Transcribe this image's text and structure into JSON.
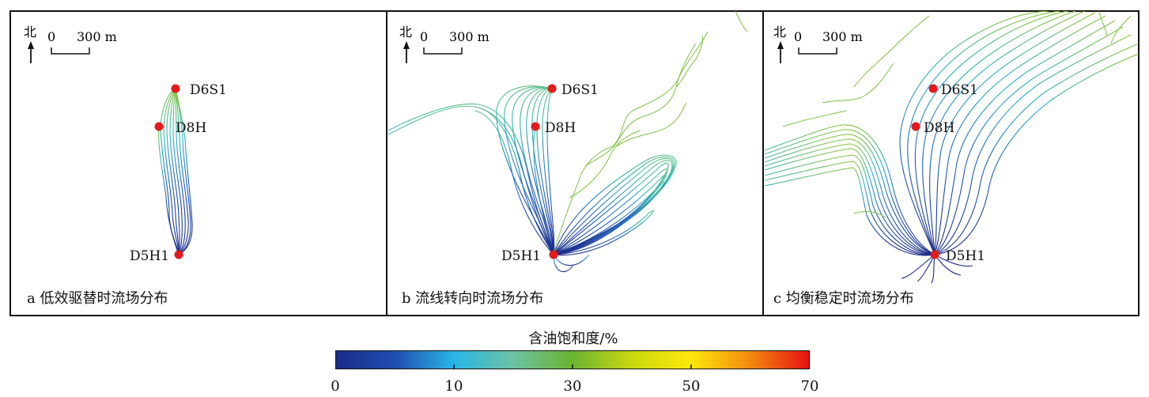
{
  "north_label": "北",
  "scale_zero": "0",
  "scale_length": "300 m",
  "panels": [
    {
      "caption": "a 低效驱替时流场分布",
      "wells": [
        {
          "name": "D6S1"
        },
        {
          "name": "D8H"
        },
        {
          "name": "D5H1"
        }
      ]
    },
    {
      "caption": "b 流线转向时流场分布",
      "wells": [
        {
          "name": "D6S1"
        },
        {
          "name": "D8H"
        },
        {
          "name": "D5H1"
        }
      ]
    },
    {
      "caption": "c 均衡稳定时流场分布",
      "wells": [
        {
          "name": "D6S1"
        },
        {
          "name": "D8H"
        },
        {
          "name": "D5H1"
        }
      ]
    }
  ],
  "legend": {
    "title": "含油饱和度/%",
    "ticks": [
      "0",
      "10",
      "30",
      "50",
      "70"
    ],
    "colors": [
      "#1a2a8a",
      "#1e4fb0",
      "#29b6e6",
      "#6cc3a0",
      "#6ab42f",
      "#c9d80f",
      "#ffe80c",
      "#f28a10",
      "#e61212"
    ]
  },
  "well_marker_color": "#e41a1c"
}
